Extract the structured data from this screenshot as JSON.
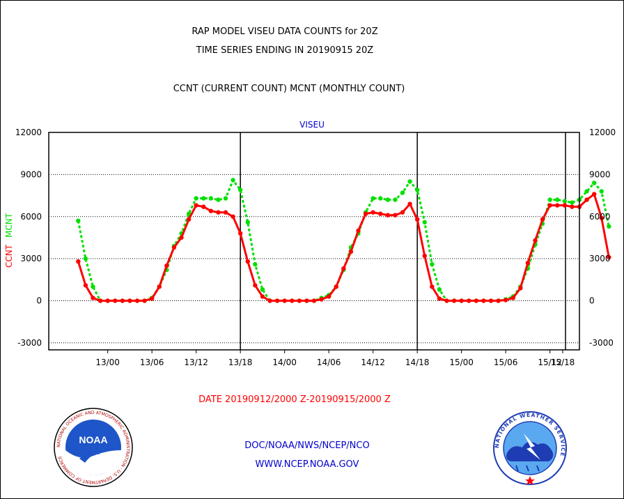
{
  "header": {
    "line1": "RAP MODEL VISEU DATA COUNTS for 20Z",
    "line2": "TIME SERIES ENDING IN 20190915 20Z",
    "line3": "CCNT (CURRENT COUNT) MCNT (MONTHLY COUNT)"
  },
  "footer": {
    "date_range": "DATE 20190912/2000 Z-20190915/2000 Z",
    "org": "DOC/NOAA/NWS/NCEP/NCO",
    "url": "WWW.NCEP.NOAA.GOV",
    "noaa_logo_text": "NOAA",
    "nws_logo_text": "NATIONAL WEATHER SERVICE",
    "commerce_seal_text": "NATIONAL OCEANIC AND ATMOSPHERIC ADMINISTRATION · U.S. DEPARTMENT OF COMMERCE"
  },
  "colors": {
    "ccnt": "#ff0000",
    "mcnt": "#00e000",
    "text_blue": "#0000cc",
    "text_red": "#ff0000"
  },
  "chart_data": {
    "type": "line",
    "title": "VISEU",
    "ylabel_left_parts": [
      "CCNT",
      "MCNT"
    ],
    "ylim": [
      -3500,
      12000
    ],
    "yticks": [
      -3000,
      0,
      3000,
      6000,
      9000,
      12000
    ],
    "xlim": [
      -4,
      68
    ],
    "x_unit": "hours since 20190912/2000 Z",
    "xtick_positions": [
      4,
      10,
      16,
      22,
      28,
      34,
      40,
      46,
      52,
      58,
      64,
      70
    ],
    "xtick_labels": [
      "13/00",
      "13/06",
      "13/12",
      "13/18",
      "14/00",
      "14/06",
      "14/12",
      "14/18",
      "15/00",
      "15/06",
      "15/12",
      "15/18"
    ],
    "day_markers": [
      22,
      46,
      70
    ],
    "grid": true,
    "series": [
      {
        "name": "CCNT",
        "values": [
          2800,
          1100,
          200,
          0,
          0,
          0,
          0,
          0,
          0,
          0,
          150,
          1000,
          2500,
          3800,
          4500,
          5800,
          6800,
          6700,
          6400,
          6300,
          6300,
          6000,
          4800,
          2800,
          1100,
          300,
          0,
          0,
          0,
          0,
          0,
          0,
          0,
          100,
          300,
          1000,
          2300,
          3500,
          5000,
          6200,
          6300,
          6200,
          6100,
          6100,
          6300,
          6900,
          5800,
          3200,
          1000,
          150,
          0,
          0,
          0,
          0,
          0,
          0,
          0,
          0,
          50,
          200,
          900,
          2700,
          4300,
          5800,
          6800,
          6800,
          6800,
          6700,
          6700,
          7200,
          7600,
          5900,
          3100
        ]
      },
      {
        "name": "MCNT",
        "values": [
          5700,
          3000,
          1000,
          0,
          0,
          0,
          0,
          0,
          0,
          0,
          200,
          1000,
          2200,
          3900,
          4800,
          6200,
          7300,
          7300,
          7300,
          7200,
          7300,
          8600,
          7900,
          5600,
          2600,
          800,
          0,
          0,
          0,
          0,
          0,
          0,
          0,
          200,
          400,
          1000,
          2200,
          3800,
          4800,
          6300,
          7300,
          7300,
          7200,
          7200,
          7700,
          8500,
          7900,
          5600,
          2600,
          800,
          0,
          0,
          0,
          0,
          0,
          0,
          0,
          0,
          100,
          300,
          1000,
          2300,
          4000,
          5500,
          7200,
          7200,
          7100,
          7000,
          7200,
          7800,
          8400,
          7800,
          5300
        ]
      }
    ]
  }
}
